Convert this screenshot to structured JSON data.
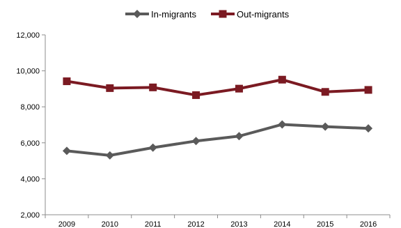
{
  "chart_data": {
    "type": "line",
    "x": [
      "2009",
      "2010",
      "2011",
      "2012",
      "2013",
      "2014",
      "2015",
      "2016"
    ],
    "series": [
      {
        "name": "In-migrants",
        "color": "#5a5a5a",
        "marker": "diamond",
        "values": [
          5550,
          5300,
          5730,
          6100,
          6370,
          7020,
          6900,
          6800
        ]
      },
      {
        "name": "Out-migrants",
        "color": "#7b1a22",
        "marker": "square",
        "values": [
          9420,
          9040,
          9080,
          8650,
          9010,
          9510,
          8830,
          8940
        ]
      }
    ],
    "y_ticks": [
      "2,000",
      "4,000",
      "6,000",
      "8,000",
      "10,000",
      "12,000"
    ],
    "ylim": [
      2000,
      12000
    ],
    "grid": false,
    "legend_position": "top-center"
  }
}
